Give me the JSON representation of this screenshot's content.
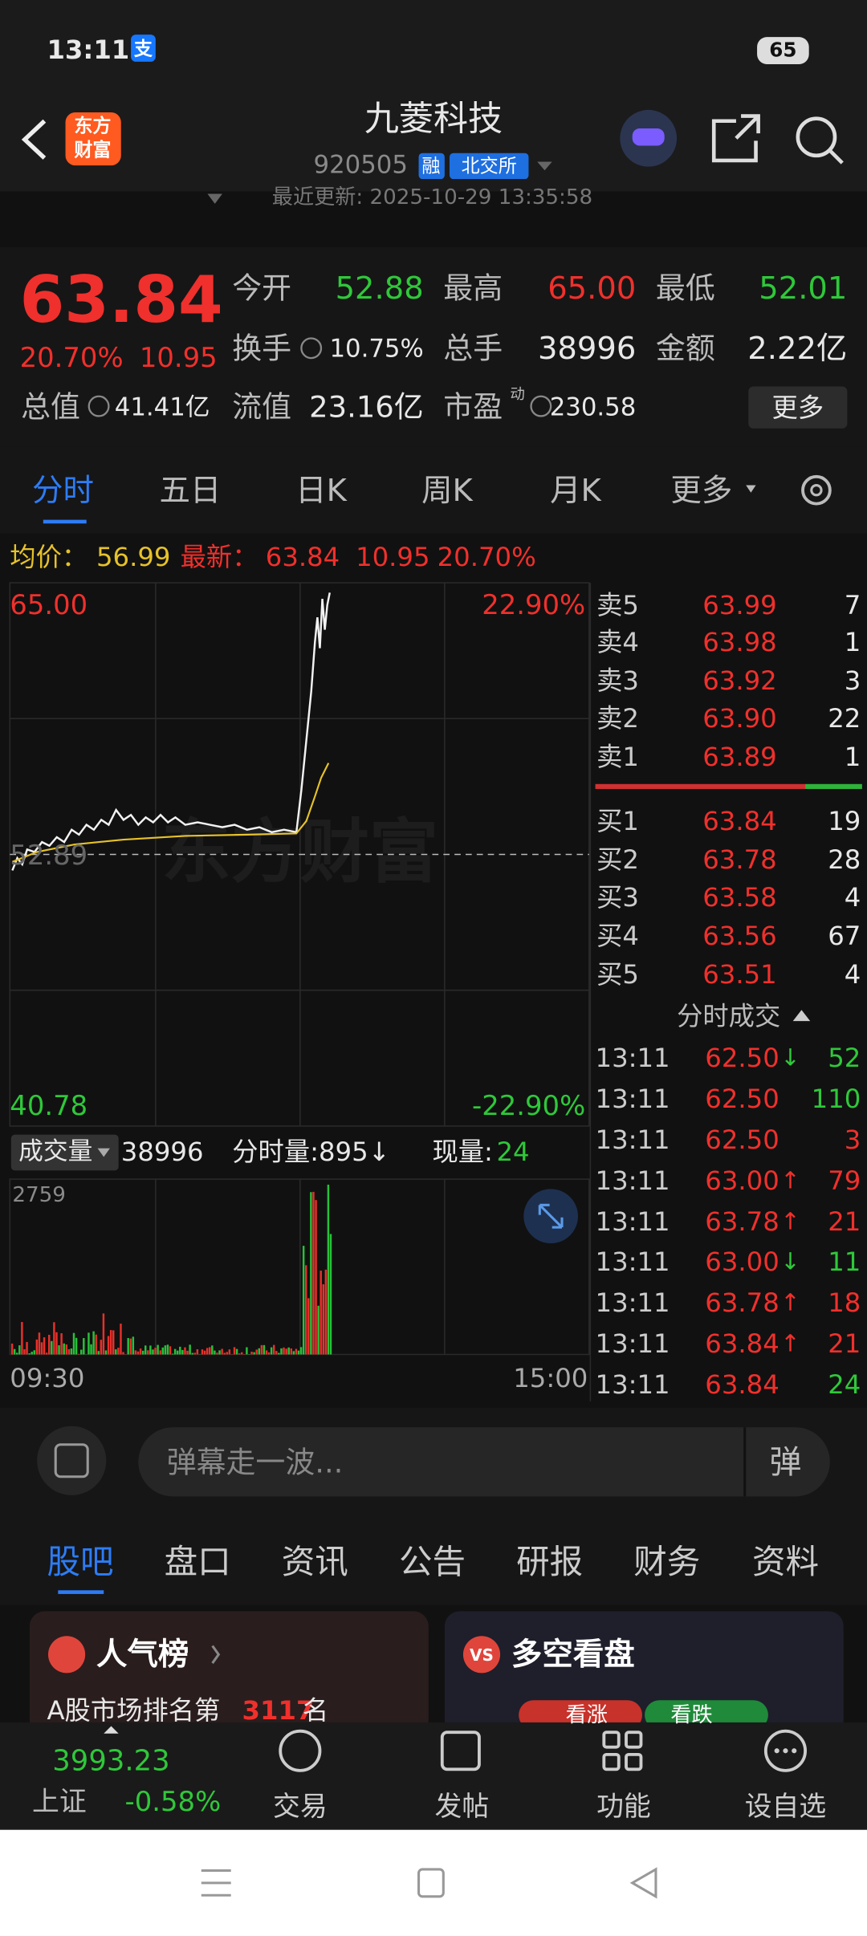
{
  "status": {
    "time": "13:11",
    "app_icon": "支",
    "battery": "65"
  },
  "header": {
    "logo": [
      "东方",
      "财富"
    ],
    "title": "九菱科技",
    "code": "920505",
    "tags": [
      "融",
      "北交所"
    ],
    "updated": "最近更新: 2025-10-29 13:35:58"
  },
  "quote": {
    "price": "63.84",
    "change_pct": "20.70%",
    "change": "10.95",
    "fields": [
      {
        "label": "今开",
        "value": "52.88",
        "color": "#2fc83a"
      },
      {
        "label": "最高",
        "value": "65.00",
        "color": "#f0302c"
      },
      {
        "label": "最低",
        "value": "52.01",
        "color": "#2fc83a"
      },
      {
        "label": "换手",
        "value": "10.75%",
        "color": "#e8e8e8"
      },
      {
        "label": "总手",
        "value": "38996",
        "color": "#e8e8e8"
      },
      {
        "label": "金额",
        "value": "2.22亿",
        "color": "#e8e8e8"
      }
    ],
    "stats": [
      {
        "label": "总值",
        "value": "41.41亿"
      },
      {
        "label": "流值",
        "value": "23.16亿"
      },
      {
        "label": "市盈",
        "superscript": "动",
        "value": "230.58"
      }
    ],
    "more": "更多"
  },
  "tabs": [
    "分时",
    "五日",
    "日K",
    "周K",
    "月K",
    "更多"
  ],
  "avg_line": [
    {
      "text": "均价：",
      "color": "#e6c229"
    },
    {
      "text": "56.99",
      "color": "#e6c229"
    },
    {
      "text": "最新：",
      "color": "#f0302c"
    },
    {
      "text": "63.84",
      "color": "#f0302c"
    },
    {
      "text": "10.95",
      "color": "#f0302c"
    },
    {
      "text": "20.70%",
      "color": "#f0302c"
    }
  ],
  "chart": {
    "high": "65.00",
    "high_pct": "22.90%",
    "prev_close": "52.89",
    "low": "40.78",
    "low_pct": "-22.90%",
    "watermark": "东方财富"
  },
  "order_book": {
    "sells": [
      {
        "label": "卖5",
        "price": "63.99",
        "volume": "7"
      },
      {
        "label": "卖4",
        "price": "63.98",
        "volume": "1"
      },
      {
        "label": "卖3",
        "price": "63.92",
        "volume": "3"
      },
      {
        "label": "卖2",
        "price": "63.90",
        "volume": "22"
      },
      {
        "label": "卖1",
        "price": "63.89",
        "volume": "1"
      }
    ],
    "buys": [
      {
        "label": "买1",
        "price": "63.84",
        "volume": "19"
      },
      {
        "label": "买2",
        "price": "63.78",
        "volume": "28"
      },
      {
        "label": "买3",
        "price": "63.58",
        "volume": "4"
      },
      {
        "label": "买4",
        "price": "63.56",
        "volume": "67"
      },
      {
        "label": "买5",
        "price": "63.51",
        "volume": "4"
      }
    ]
  },
  "trades": {
    "title": "分时成交",
    "rows": [
      {
        "time": "13:11",
        "price": "62.50",
        "arrow": "↓",
        "arrow_color": "#2fc83a",
        "volume": "52",
        "color": "#2fc83a"
      },
      {
        "time": "13:11",
        "price": "62.50",
        "volume": "110",
        "color": "#2fc83a"
      },
      {
        "time": "13:11",
        "price": "62.50",
        "volume": "3",
        "color": "#f0302c"
      },
      {
        "time": "13:11",
        "price": "63.00",
        "arrow": "↑",
        "arrow_color": "#f0302c",
        "volume": "79",
        "color": "#f0302c"
      },
      {
        "time": "13:11",
        "price": "63.78",
        "arrow": "↑",
        "arrow_color": "#f0302c",
        "volume": "21",
        "color": "#f0302c"
      },
      {
        "time": "13:11",
        "price": "63.00",
        "arrow": "↓",
        "arrow_color": "#2fc83a",
        "volume": "11",
        "color": "#2fc83a"
      },
      {
        "time": "13:11",
        "price": "63.78",
        "arrow": "↑",
        "arrow_color": "#f0302c",
        "volume": "18",
        "color": "#f0302c"
      },
      {
        "time": "13:11",
        "price": "63.84",
        "arrow": "↑",
        "arrow_color": "#f0302c",
        "volume": "21",
        "color": "#f0302c"
      },
      {
        "time": "13:11",
        "price": "63.84",
        "volume": "24",
        "color": "#2fc83a"
      }
    ]
  },
  "volume": {
    "label": "成交量",
    "total": "38996",
    "per_minute": "分时量:895↓",
    "now_label": "现量:",
    "now": "24",
    "max": "2759",
    "start": "09:30",
    "end": "15:00"
  },
  "comment": {
    "placeholder": "弹幕走一波...",
    "button": "弹"
  },
  "tabs2": [
    "股吧",
    "盘口",
    "资讯",
    "公告",
    "研报",
    "财务",
    "资料"
  ],
  "cards": [
    {
      "title": "人气榜",
      "text_prefix": "A股市场排名第",
      "rank": "3117",
      "text_suffix": "名"
    },
    {
      "icon": "VS",
      "title": "多空看盘",
      "buttons": [
        "看涨",
        "看跌"
      ]
    }
  ],
  "bottom": {
    "index_value": "3993.23",
    "index_name": "上证",
    "index_pct": "-0.58%",
    "nav": [
      "交易",
      "发帖",
      "功能",
      "设自选"
    ]
  }
}
